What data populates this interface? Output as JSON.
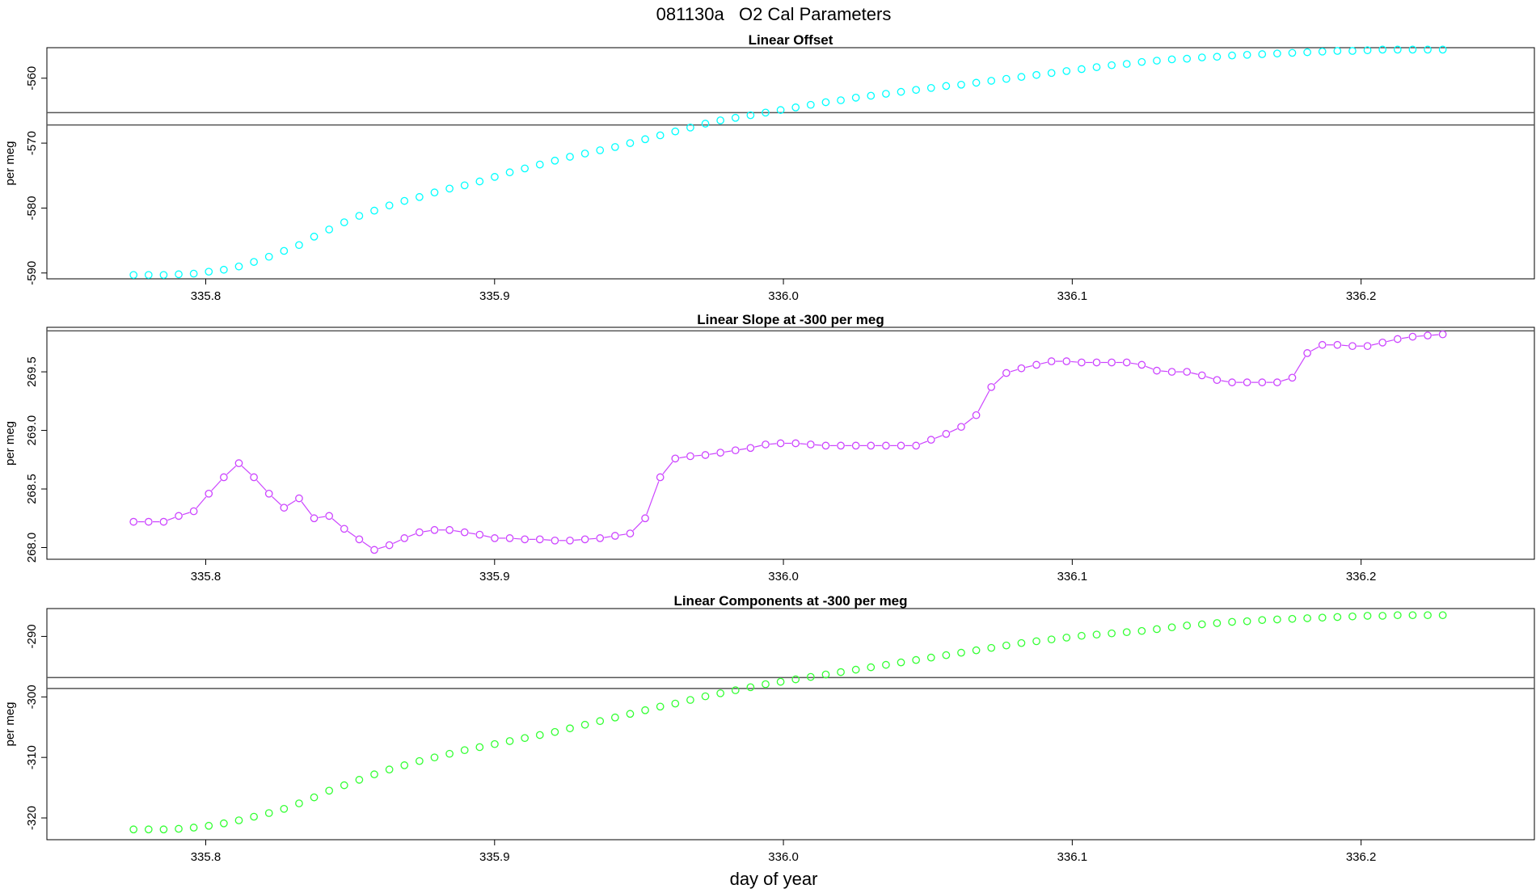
{
  "figure": {
    "title": "081130a   O2 Cal Parameters",
    "xlabel": "day of year",
    "ylabel": "per meg"
  },
  "chart_data": [
    {
      "type": "scatter",
      "title": "Linear Offset",
      "xlabel": "day of year",
      "ylabel": "per meg",
      "xlim": [
        335.745,
        336.26
      ],
      "ylim": [
        -590.9,
        -555.3
      ],
      "xticks": [
        "335.8",
        "335.9",
        "336.0",
        "336.1",
        "336.2"
      ],
      "xtick_values": [
        335.8,
        335.9,
        336.0,
        336.1,
        336.2
      ],
      "yticks": [
        "-560",
        "-570",
        "-580",
        "-590"
      ],
      "ytick_values": [
        -560,
        -570,
        -580,
        -590
      ],
      "hlines": [
        -565.3,
        -567.2
      ],
      "color": "#00ffff",
      "connected": false,
      "series": [
        {
          "x_start": 335.775,
          "x_step": 0.00521,
          "values": [
            -590.3,
            -590.3,
            -590.3,
            -590.2,
            -590.1,
            -589.8,
            -589.5,
            -589.0,
            -588.3,
            -587.5,
            -586.6,
            -585.7,
            -584.4,
            -583.3,
            -582.2,
            -581.2,
            -580.4,
            -579.6,
            -578.9,
            -578.3,
            -577.6,
            -577.0,
            -576.5,
            -575.9,
            -575.2,
            -574.5,
            -573.9,
            -573.3,
            -572.7,
            -572.1,
            -571.6,
            -571.1,
            -570.6,
            -570.0,
            -569.4,
            -568.8,
            -568.2,
            -567.6,
            -567.0,
            -566.5,
            -566.1,
            -565.7,
            -565.3,
            -564.9,
            -564.5,
            -564.1,
            -563.7,
            -563.4,
            -563.0,
            -562.7,
            -562.4,
            -562.1,
            -561.8,
            -561.5,
            -561.2,
            -561.0,
            -560.7,
            -560.4,
            -560.1,
            -559.8,
            -559.5,
            -559.2,
            -558.9,
            -558.6,
            -558.3,
            -558.0,
            -557.8,
            -557.5,
            -557.3,
            -557.1,
            -557.0,
            -556.8,
            -556.7,
            -556.5,
            -556.4,
            -556.3,
            -556.2,
            -556.1,
            -556.0,
            -555.9,
            -555.8,
            -555.8,
            -555.7,
            -555.6,
            -555.6,
            -555.6,
            -555.6,
            -555.6
          ]
        }
      ]
    },
    {
      "type": "line",
      "title": "Linear Slope at -300 per meg",
      "xlabel": "day of year",
      "ylabel": "per meg",
      "xlim": [
        335.745,
        336.26
      ],
      "ylim": [
        267.9,
        269.88
      ],
      "xticks": [
        "335.8",
        "335.9",
        "336.0",
        "336.1",
        "336.2"
      ],
      "xtick_values": [
        335.8,
        335.9,
        336.0,
        336.1,
        336.2
      ],
      "yticks": [
        "268.0",
        "268.5",
        "269.0",
        "269.5"
      ],
      "ytick_values": [
        268.0,
        268.5,
        269.0,
        269.5
      ],
      "hlines": [
        269.85
      ],
      "color": "#cc44ff",
      "connected": true,
      "series": [
        {
          "x_start": 335.775,
          "x_step": 0.00521,
          "values": [
            268.22,
            268.22,
            268.22,
            268.27,
            268.31,
            268.46,
            268.6,
            268.72,
            268.6,
            268.46,
            268.34,
            268.42,
            268.25,
            268.27,
            268.16,
            268.07,
            267.98,
            268.02,
            268.08,
            268.13,
            268.15,
            268.15,
            268.13,
            268.11,
            268.08,
            268.08,
            268.07,
            268.07,
            268.06,
            268.06,
            268.07,
            268.08,
            268.1,
            268.12,
            268.25,
            268.6,
            268.76,
            268.78,
            268.79,
            268.81,
            268.83,
            268.85,
            268.88,
            268.89,
            268.89,
            268.88,
            268.87,
            268.87,
            268.87,
            268.87,
            268.87,
            268.87,
            268.87,
            268.92,
            268.97,
            269.03,
            269.13,
            269.37,
            269.49,
            269.53,
            269.56,
            269.59,
            269.59,
            269.58,
            269.58,
            269.58,
            269.58,
            269.56,
            269.51,
            269.5,
            269.5,
            269.47,
            269.43,
            269.41,
            269.41,
            269.41,
            269.41,
            269.45,
            269.66,
            269.73,
            269.73,
            269.72,
            269.72,
            269.75,
            269.78,
            269.8,
            269.81,
            269.82
          ]
        }
      ]
    },
    {
      "type": "scatter",
      "title": "Linear Components at -300 per meg",
      "xlabel": "day of year",
      "ylabel": "per meg",
      "xlim": [
        335.745,
        336.26
      ],
      "ylim": [
        -323.6,
        -285.4
      ],
      "xticks": [
        "335.8",
        "335.9",
        "336.0",
        "336.1",
        "336.2"
      ],
      "xtick_values": [
        335.8,
        335.9,
        336.0,
        336.1,
        336.2
      ],
      "yticks": [
        "-290",
        "-300",
        "-310",
        "-320"
      ],
      "ytick_values": [
        -290,
        -300,
        -310,
        -320
      ],
      "hlines": [
        -296.8,
        -298.6
      ],
      "color": "#33ff33",
      "connected": false,
      "series": [
        {
          "x_start": 335.775,
          "x_step": 0.00521,
          "values": [
            -321.9,
            -321.9,
            -321.9,
            -321.8,
            -321.6,
            -321.3,
            -320.9,
            -320.4,
            -319.8,
            -319.2,
            -318.5,
            -317.6,
            -316.6,
            -315.5,
            -314.6,
            -313.7,
            -312.8,
            -312.0,
            -311.3,
            -310.6,
            -310.0,
            -309.4,
            -308.8,
            -308.3,
            -307.8,
            -307.3,
            -306.8,
            -306.3,
            -305.8,
            -305.2,
            -304.6,
            -304.0,
            -303.4,
            -302.8,
            -302.2,
            -301.6,
            -301.1,
            -300.5,
            -299.9,
            -299.4,
            -298.9,
            -298.4,
            -297.9,
            -297.5,
            -297.1,
            -296.7,
            -296.3,
            -295.9,
            -295.5,
            -295.1,
            -294.7,
            -294.3,
            -293.9,
            -293.5,
            -293.1,
            -292.7,
            -292.3,
            -291.9,
            -291.5,
            -291.1,
            -290.8,
            -290.5,
            -290.2,
            -289.9,
            -289.7,
            -289.5,
            -289.3,
            -289.1,
            -288.8,
            -288.5,
            -288.2,
            -288.0,
            -287.8,
            -287.6,
            -287.5,
            -287.3,
            -287.2,
            -287.1,
            -287.0,
            -286.9,
            -286.8,
            -286.7,
            -286.6,
            -286.6,
            -286.5,
            -286.5,
            -286.5,
            -286.5
          ]
        }
      ]
    }
  ]
}
